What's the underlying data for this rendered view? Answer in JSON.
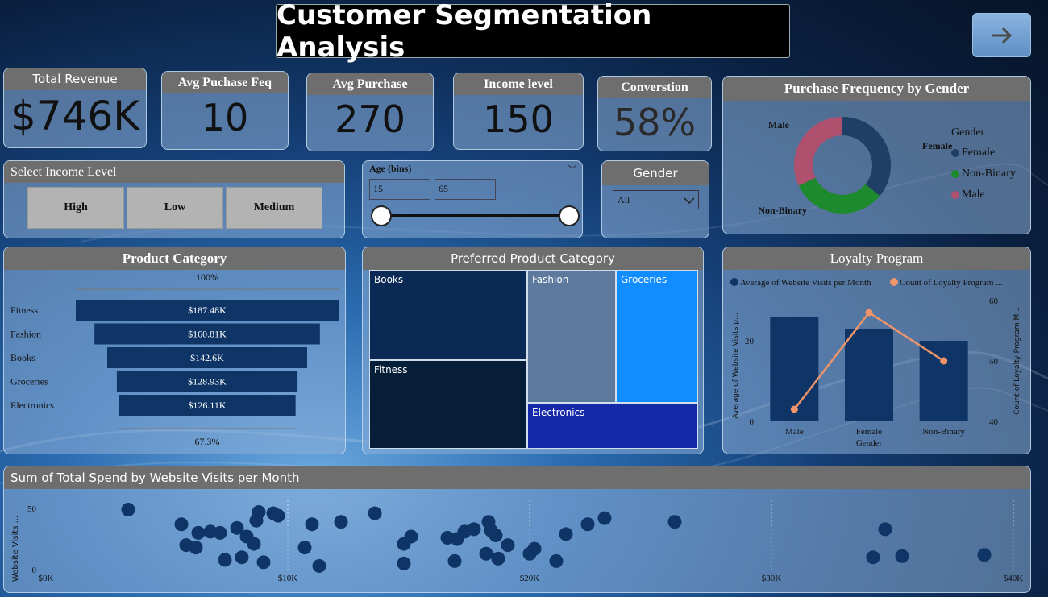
{
  "title": "Customer Segmentation Analysis",
  "kpis": [
    {
      "label": "Total Revenue",
      "value": "$746K"
    },
    {
      "label": "Avg Puchase Feq",
      "value": "10"
    },
    {
      "label": "Avg Purchase",
      "value": "270"
    },
    {
      "label": "Income level",
      "value": "150"
    },
    {
      "label": "Converstion",
      "value": "58%"
    }
  ],
  "income_slicer": {
    "title": "Select Income Level",
    "options": [
      "High",
      "Low",
      "Medium"
    ]
  },
  "age_slicer": {
    "title": "Age (bins)",
    "min": "15",
    "max": "65"
  },
  "gender_slicer": {
    "title": "Gender",
    "selected": "All"
  },
  "donut": {
    "title": "Purchase Frequency by Gender",
    "legend_title": "Gender",
    "chart_data": {
      "type": "pie",
      "categories": [
        "Female",
        "Non-Binary",
        "Male"
      ],
      "values": [
        36,
        32,
        32
      ],
      "colors": [
        "#1f3f66",
        "#1e8a2e",
        "#b0506f"
      ]
    }
  },
  "funnel": {
    "title": "Product Category",
    "top_label": "100%",
    "bottom_label": "67.3%",
    "chart_data": {
      "type": "bar",
      "categories": [
        "Fitness",
        "Fashion",
        "Books",
        "Groceries",
        "Electronics"
      ],
      "values": [
        187.48,
        160.81,
        142.6,
        128.93,
        126.11
      ],
      "labels": [
        "$187.48K",
        "$160.81K",
        "$142.6K",
        "$128.93K",
        "$126.11K"
      ]
    }
  },
  "treemap": {
    "title": "Preferred Product Category",
    "cells": [
      {
        "label": "Books",
        "color": "#0a2a55"
      },
      {
        "label": "Fashion",
        "color": "#5d7a9e"
      },
      {
        "label": "Groceries",
        "color": "#118dff"
      },
      {
        "label": "Fitness",
        "color": "#061e38"
      },
      {
        "label": "Electronics",
        "color": "#1428a8"
      }
    ]
  },
  "loyalty": {
    "title": "Loyalty Program",
    "legend": [
      "Average of Website Visits per Month",
      "Count of Loyalty Program ..."
    ],
    "y_left_label": "Average of Website Visits p...",
    "y_right_label": "Count of Loyalty Program M...",
    "x_label": "Gender",
    "left_ticks": [
      "0",
      "20"
    ],
    "right_ticks": [
      "40",
      "50",
      "60"
    ],
    "chart_data": {
      "type": "bar",
      "categories": [
        "Male",
        "Female",
        "Non-Binary"
      ],
      "series": [
        {
          "name": "Average of Website Visits per Month",
          "values": [
            26,
            23,
            20
          ]
        },
        {
          "name": "Count of Loyalty Program ...",
          "values": [
            42,
            58,
            50
          ]
        }
      ],
      "ylim_left": [
        0,
        30
      ],
      "ylim_right": [
        40,
        60
      ]
    }
  },
  "scatter": {
    "title": "Sum of Total Spend by Website Visits per Month",
    "y_label": "Website Visits ...",
    "x_ticks": [
      "$0K",
      "$10K",
      "$20K",
      "$30K",
      "$40K"
    ],
    "y_ticks": [
      "0",
      "50"
    ],
    "chart_data": {
      "type": "scatter",
      "xlim": [
        0,
        40000
      ],
      "ylim": [
        0,
        50
      ],
      "points": [
        [
          3400,
          49
        ],
        [
          5600,
          37
        ],
        [
          5800,
          20
        ],
        [
          6200,
          18
        ],
        [
          6300,
          30
        ],
        [
          6800,
          31
        ],
        [
          7200,
          30
        ],
        [
          7400,
          8
        ],
        [
          7900,
          34
        ],
        [
          8100,
          10
        ],
        [
          8300,
          27
        ],
        [
          8600,
          21
        ],
        [
          8700,
          40
        ],
        [
          8800,
          47
        ],
        [
          9000,
          6
        ],
        [
          9400,
          46
        ],
        [
          9600,
          44
        ],
        [
          10700,
          18
        ],
        [
          11000,
          37
        ],
        [
          11300,
          3
        ],
        [
          12200,
          39
        ],
        [
          13600,
          46
        ],
        [
          14800,
          21
        ],
        [
          14800,
          5
        ],
        [
          15100,
          27
        ],
        [
          16600,
          26
        ],
        [
          16900,
          7
        ],
        [
          17000,
          25
        ],
        [
          17300,
          31
        ],
        [
          17700,
          33
        ],
        [
          18200,
          13
        ],
        [
          18300,
          39
        ],
        [
          18400,
          32
        ],
        [
          18600,
          28
        ],
        [
          18700,
          9
        ],
        [
          19100,
          20
        ],
        [
          20000,
          13
        ],
        [
          20200,
          17
        ],
        [
          21100,
          7
        ],
        [
          21500,
          29
        ],
        [
          22400,
          37
        ],
        [
          23100,
          42
        ],
        [
          26000,
          39
        ],
        [
          34200,
          10
        ],
        [
          34700,
          33
        ],
        [
          35400,
          11
        ],
        [
          38800,
          12
        ]
      ]
    }
  }
}
